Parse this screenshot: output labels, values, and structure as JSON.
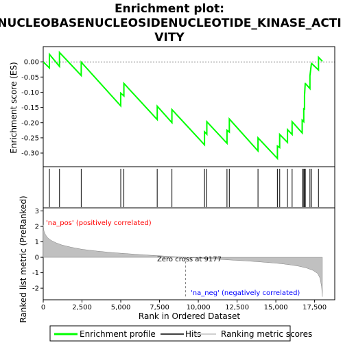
{
  "title_lines": [
    "Enrichment plot:",
    "NUCLEOBASENUCLEOSIDENUCLEOTIDE_KINASE_ACTI",
    "VITY"
  ],
  "colors": {
    "es_line": "#00ff00",
    "hits": "#000000",
    "metric_fill": "#c0c0c0",
    "pos_text": "#ff0000",
    "neg_text": "#0000ff",
    "zero_line": "#808080"
  },
  "chart_data": [
    {
      "type": "line",
      "name": "enrichment_score",
      "ylabel": "Enrichment score (ES)",
      "xlim": [
        0,
        18800
      ],
      "ylim": [
        -0.345,
        0.05
      ],
      "yticks": [
        0.0,
        -0.05,
        -0.1,
        -0.15,
        -0.2,
        -0.25,
        -0.3
      ],
      "ytick_labels": [
        "0.00",
        "-0.05",
        "-0.10",
        "-0.15",
        "-0.20",
        "-0.25",
        "-0.30"
      ],
      "hits": [
        400,
        1050,
        2450,
        5000,
        5200,
        7350,
        8300,
        10400,
        10550,
        11850,
        12000,
        13850,
        15100,
        15250,
        15750,
        16050,
        16700,
        16800,
        16850,
        16900,
        17200,
        17300,
        17750
      ],
      "x": [
        0,
        400,
        400,
        1050,
        1050,
        2450,
        2450,
        5000,
        5000,
        5200,
        5200,
        7350,
        7350,
        8300,
        8300,
        10400,
        10400,
        10550,
        10550,
        11850,
        11850,
        12000,
        12000,
        13850,
        13850,
        15100,
        15100,
        15250,
        15250,
        15750,
        15750,
        16050,
        16050,
        16700,
        16700,
        16800,
        16800,
        16850,
        16850,
        16900,
        16900,
        17200,
        17200,
        17300,
        17300,
        17750,
        17750,
        18000
      ],
      "y": [
        0.0,
        -0.02,
        0.025,
        -0.015,
        0.031,
        -0.045,
        -0.001,
        -0.145,
        -0.103,
        -0.112,
        -0.071,
        -0.19,
        -0.146,
        -0.2,
        -0.157,
        -0.273,
        -0.23,
        -0.238,
        -0.197,
        -0.268,
        -0.225,
        -0.231,
        -0.188,
        -0.293,
        -0.25,
        -0.318,
        -0.277,
        -0.282,
        -0.239,
        -0.265,
        -0.223,
        -0.239,
        -0.197,
        -0.234,
        -0.192,
        -0.197,
        -0.154,
        -0.155,
        -0.112,
        -0.069,
        -0.071,
        -0.088,
        -0.046,
        -0.003,
        -0.005,
        -0.027,
        0.015,
        0.002
      ]
    },
    {
      "type": "area",
      "name": "ranked_list_metric",
      "xlabel": "Rank in Ordered Dataset",
      "ylabel": "Ranked list metric (PreRanked)",
      "xlim": [
        0,
        18800
      ],
      "ylim": [
        -2.75,
        3.2
      ],
      "yticks": [
        3,
        2,
        1,
        0,
        -1,
        -2
      ],
      "ytick_labels": [
        "3",
        "2",
        "1",
        "0",
        "-1",
        "-2"
      ],
      "xticks": [
        0,
        2500,
        5000,
        7500,
        10000,
        12500,
        15000,
        17500
      ],
      "xtick_labels": [
        "0",
        "2,500",
        "5,000",
        "7,500",
        "10,000",
        "12,500",
        "15,000",
        "17,500"
      ],
      "x": [
        0,
        50,
        150,
        300,
        500,
        800,
        1200,
        1800,
        2500,
        3500,
        4500,
        5500,
        6500,
        7500,
        8500,
        9177,
        10000,
        11000,
        12000,
        13000,
        14000,
        15000,
        15500,
        16000,
        16500,
        17000,
        17400,
        17700,
        17850,
        17950,
        18000
      ],
      "y": [
        2.1,
        1.7,
        1.45,
        1.25,
        1.1,
        0.95,
        0.8,
        0.65,
        0.52,
        0.4,
        0.3,
        0.23,
        0.16,
        0.1,
        0.04,
        0.0,
        -0.05,
        -0.11,
        -0.17,
        -0.23,
        -0.3,
        -0.38,
        -0.43,
        -0.5,
        -0.58,
        -0.7,
        -0.85,
        -1.05,
        -1.35,
        -1.9,
        -2.55
      ],
      "zero_cross": 9177,
      "annotations": {
        "pos": "'na_pos' (positively correlated)",
        "neg": "'na_neg' (negatively correlated)",
        "zero": "Zero cross at 9177"
      }
    }
  ],
  "legend": {
    "items": [
      {
        "label": "Enrichment profile",
        "color": "#00ff00"
      },
      {
        "label": "Hits",
        "color": "#000000"
      },
      {
        "label": "Ranking metric scores",
        "color": "#c0c0c0"
      }
    ]
  }
}
